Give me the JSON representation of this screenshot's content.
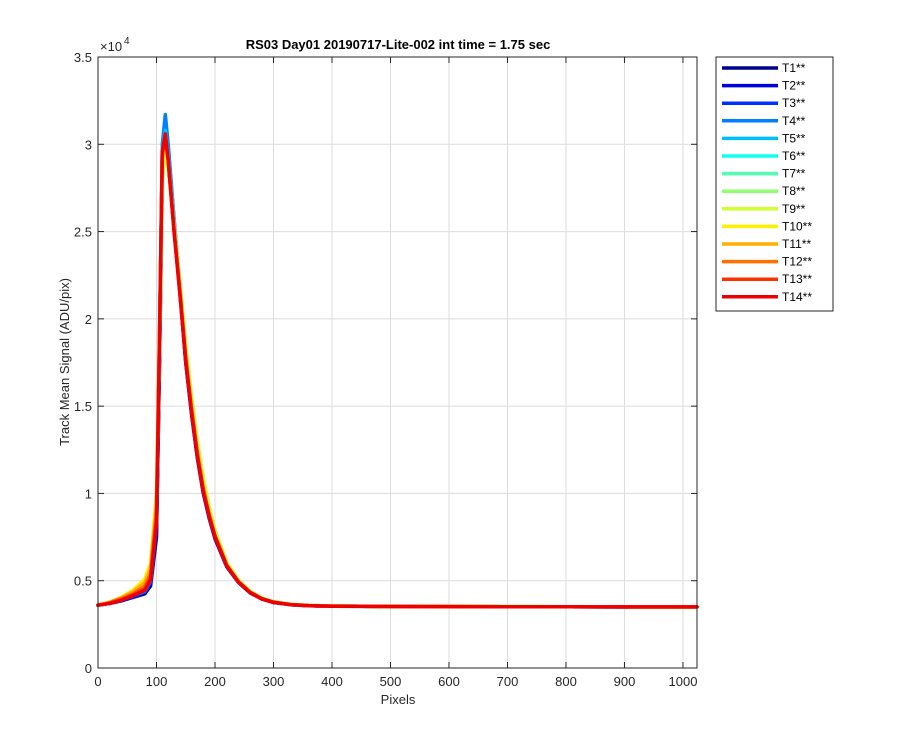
{
  "chart_data": {
    "type": "line",
    "title": "RS03 Day01 20190717-Lite-002 int time = 1.75 sec",
    "xlabel": "Pixels",
    "ylabel": "Track Mean Signal (ADU/pix)",
    "xlim": [
      0,
      1024
    ],
    "ylim": [
      0,
      35000
    ],
    "y_exponent_label": "×10",
    "y_exponent_power": "4",
    "xticks": [
      0,
      100,
      200,
      300,
      400,
      500,
      600,
      700,
      800,
      900,
      1000
    ],
    "xtick_labels": [
      "0",
      "100",
      "200",
      "300",
      "400",
      "500",
      "600",
      "700",
      "800",
      "900",
      "1000"
    ],
    "yticks": [
      0,
      5000,
      10000,
      15000,
      20000,
      25000,
      30000,
      35000
    ],
    "ytick_labels": [
      "0",
      "0.5",
      "1",
      "1.5",
      "2",
      "2.5",
      "3",
      "3.5"
    ],
    "grid": true,
    "legend_position": "outside-right",
    "x": [
      0,
      20,
      40,
      60,
      80,
      90,
      100,
      105,
      110,
      115,
      120,
      130,
      140,
      150,
      160,
      170,
      180,
      190,
      200,
      220,
      240,
      260,
      280,
      300,
      330,
      360,
      400,
      450,
      500,
      600,
      700,
      800,
      900,
      1024
    ],
    "series": [
      {
        "name": "T1**",
        "color": "#00008f",
        "values": [
          3600,
          3700,
          3850,
          4050,
          4250,
          4700,
          7500,
          17000,
          28500,
          31000,
          29500,
          25500,
          21500,
          17500,
          14500,
          12000,
          10000,
          8600,
          7400,
          5800,
          4900,
          4300,
          3950,
          3750,
          3620,
          3570,
          3540,
          3530,
          3520,
          3515,
          3510,
          3505,
          3500,
          3500
        ]
      },
      {
        "name": "T2**",
        "color": "#0000df",
        "values": [
          3600,
          3700,
          3850,
          4080,
          4300,
          4800,
          7800,
          17500,
          29000,
          31200,
          29600,
          25600,
          21600,
          17600,
          14600,
          12100,
          10100,
          8700,
          7500,
          5850,
          4920,
          4320,
          3960,
          3760,
          3625,
          3572,
          3542,
          3532,
          3522,
          3516,
          3511,
          3506,
          3501,
          3500
        ]
      },
      {
        "name": "T3**",
        "color": "#0030ff",
        "values": [
          3600,
          3710,
          3870,
          4100,
          4350,
          4900,
          8100,
          18000,
          29500,
          31500,
          29800,
          25700,
          21700,
          17700,
          14700,
          12200,
          10200,
          8800,
          7550,
          5880,
          4940,
          4330,
          3970,
          3770,
          3630,
          3575,
          3545,
          3535,
          3525,
          3518,
          3512,
          3507,
          3502,
          3500
        ]
      },
      {
        "name": "T4**",
        "color": "#0080ff",
        "values": [
          3600,
          3720,
          3900,
          4150,
          4400,
          5000,
          8400,
          18500,
          30000,
          31700,
          30000,
          25800,
          21800,
          17800,
          14800,
          12300,
          10300,
          8850,
          7600,
          5900,
          4950,
          4340,
          3975,
          3775,
          3632,
          3577,
          3547,
          3536,
          3526,
          3519,
          3513,
          3508,
          3503,
          3500
        ]
      },
      {
        "name": "T5**",
        "color": "#00bfff",
        "values": [
          3600,
          3730,
          3920,
          4200,
          4500,
          5100,
          8600,
          18800,
          29800,
          30800,
          29400,
          25700,
          21900,
          18000,
          15000,
          12500,
          10400,
          8900,
          7650,
          5920,
          4960,
          4350,
          3980,
          3780,
          3634,
          3578,
          3548,
          3537,
          3527,
          3520,
          3514,
          3509,
          3504,
          3500
        ]
      },
      {
        "name": "T6**",
        "color": "#10ffef",
        "values": [
          3600,
          3740,
          3950,
          4250,
          4600,
          5250,
          8800,
          18500,
          29000,
          30200,
          29000,
          25500,
          21900,
          18100,
          15100,
          12600,
          10500,
          8950,
          7700,
          5950,
          4980,
          4360,
          3985,
          3785,
          3636,
          3579,
          3549,
          3538,
          3528,
          3521,
          3515,
          3510,
          3505,
          3500
        ]
      },
      {
        "name": "T7**",
        "color": "#50ffaf",
        "values": [
          3600,
          3750,
          3980,
          4300,
          4700,
          5400,
          9000,
          18200,
          28500,
          29800,
          28800,
          25400,
          22000,
          18300,
          15300,
          12800,
          10700,
          9100,
          7800,
          6000,
          5000,
          4380,
          3990,
          3790,
          3638,
          3580,
          3550,
          3539,
          3529,
          3522,
          3516,
          3511,
          3506,
          3500
        ]
      },
      {
        "name": "T8**",
        "color": "#8fff70",
        "values": [
          3600,
          3760,
          4010,
          4380,
          4850,
          5600,
          9300,
          18000,
          28000,
          29500,
          28600,
          25400,
          22100,
          18500,
          15500,
          13000,
          10900,
          9250,
          7900,
          6050,
          5030,
          4400,
          4000,
          3795,
          3640,
          3581,
          3551,
          3540,
          3530,
          3523,
          3517,
          3512,
          3507,
          3500
        ]
      },
      {
        "name": "T9**",
        "color": "#cfff30",
        "values": [
          3600,
          3770,
          4050,
          4450,
          5000,
          5800,
          9600,
          18200,
          28200,
          29600,
          28700,
          25300,
          22000,
          18400,
          15400,
          12900,
          10800,
          9200,
          7850,
          6030,
          5020,
          4390,
          3995,
          3792,
          3639,
          3580,
          3550,
          3539,
          3529,
          3522,
          3516,
          3511,
          3506,
          3500
        ]
      },
      {
        "name": "T10**",
        "color": "#ffef00",
        "values": [
          3600,
          3770,
          4050,
          4450,
          5100,
          6000,
          10000,
          18800,
          28800,
          29900,
          28800,
          25200,
          21800,
          18100,
          15100,
          12600,
          10500,
          8950,
          7700,
          5950,
          4980,
          4360,
          3985,
          3785,
          3636,
          3579,
          3549,
          3538,
          3528,
          3521,
          3515,
          3510,
          3505,
          3500
        ]
      },
      {
        "name": "T11**",
        "color": "#ffaf00",
        "values": [
          3600,
          3760,
          4020,
          4380,
          4900,
          5700,
          9500,
          18800,
          29200,
          30200,
          29000,
          25200,
          21700,
          17900,
          14900,
          12400,
          10300,
          8850,
          7620,
          5910,
          4960,
          4350,
          3980,
          3780,
          3634,
          3578,
          3548,
          3537,
          3527,
          3520,
          3514,
          3509,
          3504,
          3500
        ]
      },
      {
        "name": "T12**",
        "color": "#ff7000",
        "values": [
          3600,
          3740,
          3970,
          4280,
          4700,
          5400,
          9000,
          18700,
          29400,
          30400,
          29100,
          25200,
          21600,
          17800,
          14800,
          12300,
          10250,
          8800,
          7580,
          5890,
          4950,
          4340,
          3975,
          3775,
          3632,
          3577,
          3547,
          3536,
          3526,
          3519,
          3513,
          3508,
          3503,
          3500
        ]
      },
      {
        "name": "T13**",
        "color": "#ff3000",
        "values": [
          3600,
          3720,
          3920,
          4200,
          4550,
          5200,
          8600,
          18500,
          29500,
          30500,
          29100,
          25100,
          21500,
          17700,
          14700,
          12200,
          10200,
          8750,
          7550,
          5870,
          4940,
          4330,
          3970,
          3770,
          3630,
          3575,
          3545,
          3535,
          3525,
          3518,
          3512,
          3507,
          3502,
          3500
        ]
      },
      {
        "name": "T14**",
        "color": "#ef0000",
        "values": [
          3600,
          3700,
          3880,
          4150,
          4450,
          5050,
          8300,
          18300,
          29600,
          30600,
          29100,
          25000,
          21400,
          17600,
          14600,
          12100,
          10100,
          8700,
          7500,
          5850,
          4920,
          4320,
          3960,
          3760,
          3625,
          3572,
          3542,
          3532,
          3522,
          3516,
          3511,
          3506,
          3501,
          3500
        ]
      }
    ]
  }
}
